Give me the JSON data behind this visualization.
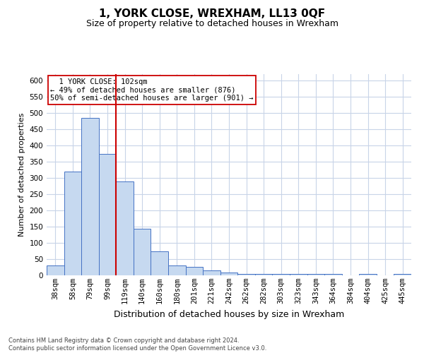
{
  "title": "1, YORK CLOSE, WREXHAM, LL13 0QF",
  "subtitle": "Size of property relative to detached houses in Wrexham",
  "xlabel": "Distribution of detached houses by size in Wrexham",
  "ylabel": "Number of detached properties",
  "categories": [
    "38sqm",
    "58sqm",
    "79sqm",
    "99sqm",
    "119sqm",
    "140sqm",
    "160sqm",
    "180sqm",
    "201sqm",
    "221sqm",
    "242sqm",
    "262sqm",
    "282sqm",
    "303sqm",
    "323sqm",
    "343sqm",
    "364sqm",
    "384sqm",
    "404sqm",
    "425sqm",
    "445sqm"
  ],
  "values": [
    30,
    320,
    485,
    375,
    290,
    143,
    75,
    30,
    27,
    15,
    8,
    5,
    4,
    5,
    4,
    4,
    5,
    0,
    5,
    0,
    5
  ],
  "bar_color": "#c6d9f0",
  "bar_edge_color": "#4472c4",
  "vline_x": 3.5,
  "vline_color": "#cc0000",
  "annotation_text": "  1 YORK CLOSE: 102sqm\n← 49% of detached houses are smaller (876)\n50% of semi-detached houses are larger (901) →",
  "annotation_box_color": "#ffffff",
  "annotation_box_edge_color": "#cc0000",
  "ylim": [
    0,
    620
  ],
  "yticks": [
    0,
    50,
    100,
    150,
    200,
    250,
    300,
    350,
    400,
    450,
    500,
    550,
    600
  ],
  "footer": "Contains HM Land Registry data © Crown copyright and database right 2024.\nContains public sector information licensed under the Open Government Licence v3.0.",
  "bg_color": "#ffffff",
  "grid_color": "#c8d4e8",
  "title_fontsize": 11,
  "subtitle_fontsize": 9,
  "ylabel_fontsize": 8,
  "xlabel_fontsize": 9,
  "tick_fontsize": 7.5,
  "footer_fontsize": 6
}
